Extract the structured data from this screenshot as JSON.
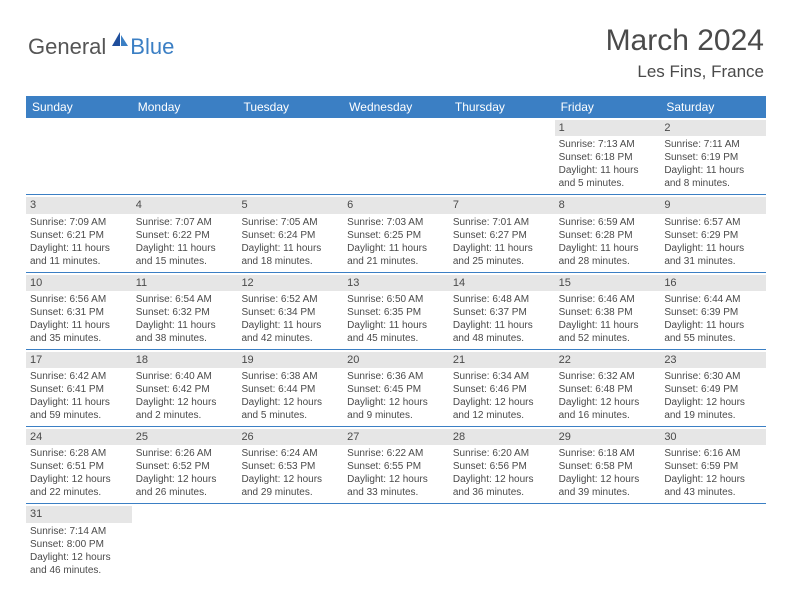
{
  "logo": {
    "text1": "General",
    "text2": "Blue"
  },
  "title": "March 2024",
  "location": "Les Fins, France",
  "header_bg": "#3b7fc4",
  "daynum_bg": "#e6e6e6",
  "text_color": "#4a4a4a",
  "days_of_week": [
    "Sunday",
    "Monday",
    "Tuesday",
    "Wednesday",
    "Thursday",
    "Friday",
    "Saturday"
  ],
  "weeks": [
    [
      null,
      null,
      null,
      null,
      null,
      {
        "n": "1",
        "sr": "Sunrise: 7:13 AM",
        "ss": "Sunset: 6:18 PM",
        "dl1": "Daylight: 11 hours",
        "dl2": "and 5 minutes."
      },
      {
        "n": "2",
        "sr": "Sunrise: 7:11 AM",
        "ss": "Sunset: 6:19 PM",
        "dl1": "Daylight: 11 hours",
        "dl2": "and 8 minutes."
      }
    ],
    [
      {
        "n": "3",
        "sr": "Sunrise: 7:09 AM",
        "ss": "Sunset: 6:21 PM",
        "dl1": "Daylight: 11 hours",
        "dl2": "and 11 minutes."
      },
      {
        "n": "4",
        "sr": "Sunrise: 7:07 AM",
        "ss": "Sunset: 6:22 PM",
        "dl1": "Daylight: 11 hours",
        "dl2": "and 15 minutes."
      },
      {
        "n": "5",
        "sr": "Sunrise: 7:05 AM",
        "ss": "Sunset: 6:24 PM",
        "dl1": "Daylight: 11 hours",
        "dl2": "and 18 minutes."
      },
      {
        "n": "6",
        "sr": "Sunrise: 7:03 AM",
        "ss": "Sunset: 6:25 PM",
        "dl1": "Daylight: 11 hours",
        "dl2": "and 21 minutes."
      },
      {
        "n": "7",
        "sr": "Sunrise: 7:01 AM",
        "ss": "Sunset: 6:27 PM",
        "dl1": "Daylight: 11 hours",
        "dl2": "and 25 minutes."
      },
      {
        "n": "8",
        "sr": "Sunrise: 6:59 AM",
        "ss": "Sunset: 6:28 PM",
        "dl1": "Daylight: 11 hours",
        "dl2": "and 28 minutes."
      },
      {
        "n": "9",
        "sr": "Sunrise: 6:57 AM",
        "ss": "Sunset: 6:29 PM",
        "dl1": "Daylight: 11 hours",
        "dl2": "and 31 minutes."
      }
    ],
    [
      {
        "n": "10",
        "sr": "Sunrise: 6:56 AM",
        "ss": "Sunset: 6:31 PM",
        "dl1": "Daylight: 11 hours",
        "dl2": "and 35 minutes."
      },
      {
        "n": "11",
        "sr": "Sunrise: 6:54 AM",
        "ss": "Sunset: 6:32 PM",
        "dl1": "Daylight: 11 hours",
        "dl2": "and 38 minutes."
      },
      {
        "n": "12",
        "sr": "Sunrise: 6:52 AM",
        "ss": "Sunset: 6:34 PM",
        "dl1": "Daylight: 11 hours",
        "dl2": "and 42 minutes."
      },
      {
        "n": "13",
        "sr": "Sunrise: 6:50 AM",
        "ss": "Sunset: 6:35 PM",
        "dl1": "Daylight: 11 hours",
        "dl2": "and 45 minutes."
      },
      {
        "n": "14",
        "sr": "Sunrise: 6:48 AM",
        "ss": "Sunset: 6:37 PM",
        "dl1": "Daylight: 11 hours",
        "dl2": "and 48 minutes."
      },
      {
        "n": "15",
        "sr": "Sunrise: 6:46 AM",
        "ss": "Sunset: 6:38 PM",
        "dl1": "Daylight: 11 hours",
        "dl2": "and 52 minutes."
      },
      {
        "n": "16",
        "sr": "Sunrise: 6:44 AM",
        "ss": "Sunset: 6:39 PM",
        "dl1": "Daylight: 11 hours",
        "dl2": "and 55 minutes."
      }
    ],
    [
      {
        "n": "17",
        "sr": "Sunrise: 6:42 AM",
        "ss": "Sunset: 6:41 PM",
        "dl1": "Daylight: 11 hours",
        "dl2": "and 59 minutes."
      },
      {
        "n": "18",
        "sr": "Sunrise: 6:40 AM",
        "ss": "Sunset: 6:42 PM",
        "dl1": "Daylight: 12 hours",
        "dl2": "and 2 minutes."
      },
      {
        "n": "19",
        "sr": "Sunrise: 6:38 AM",
        "ss": "Sunset: 6:44 PM",
        "dl1": "Daylight: 12 hours",
        "dl2": "and 5 minutes."
      },
      {
        "n": "20",
        "sr": "Sunrise: 6:36 AM",
        "ss": "Sunset: 6:45 PM",
        "dl1": "Daylight: 12 hours",
        "dl2": "and 9 minutes."
      },
      {
        "n": "21",
        "sr": "Sunrise: 6:34 AM",
        "ss": "Sunset: 6:46 PM",
        "dl1": "Daylight: 12 hours",
        "dl2": "and 12 minutes."
      },
      {
        "n": "22",
        "sr": "Sunrise: 6:32 AM",
        "ss": "Sunset: 6:48 PM",
        "dl1": "Daylight: 12 hours",
        "dl2": "and 16 minutes."
      },
      {
        "n": "23",
        "sr": "Sunrise: 6:30 AM",
        "ss": "Sunset: 6:49 PM",
        "dl1": "Daylight: 12 hours",
        "dl2": "and 19 minutes."
      }
    ],
    [
      {
        "n": "24",
        "sr": "Sunrise: 6:28 AM",
        "ss": "Sunset: 6:51 PM",
        "dl1": "Daylight: 12 hours",
        "dl2": "and 22 minutes."
      },
      {
        "n": "25",
        "sr": "Sunrise: 6:26 AM",
        "ss": "Sunset: 6:52 PM",
        "dl1": "Daylight: 12 hours",
        "dl2": "and 26 minutes."
      },
      {
        "n": "26",
        "sr": "Sunrise: 6:24 AM",
        "ss": "Sunset: 6:53 PM",
        "dl1": "Daylight: 12 hours",
        "dl2": "and 29 minutes."
      },
      {
        "n": "27",
        "sr": "Sunrise: 6:22 AM",
        "ss": "Sunset: 6:55 PM",
        "dl1": "Daylight: 12 hours",
        "dl2": "and 33 minutes."
      },
      {
        "n": "28",
        "sr": "Sunrise: 6:20 AM",
        "ss": "Sunset: 6:56 PM",
        "dl1": "Daylight: 12 hours",
        "dl2": "and 36 minutes."
      },
      {
        "n": "29",
        "sr": "Sunrise: 6:18 AM",
        "ss": "Sunset: 6:58 PM",
        "dl1": "Daylight: 12 hours",
        "dl2": "and 39 minutes."
      },
      {
        "n": "30",
        "sr": "Sunrise: 6:16 AM",
        "ss": "Sunset: 6:59 PM",
        "dl1": "Daylight: 12 hours",
        "dl2": "and 43 minutes."
      }
    ],
    [
      {
        "n": "31",
        "sr": "Sunrise: 7:14 AM",
        "ss": "Sunset: 8:00 PM",
        "dl1": "Daylight: 12 hours",
        "dl2": "and 46 minutes."
      },
      null,
      null,
      null,
      null,
      null,
      null
    ]
  ]
}
